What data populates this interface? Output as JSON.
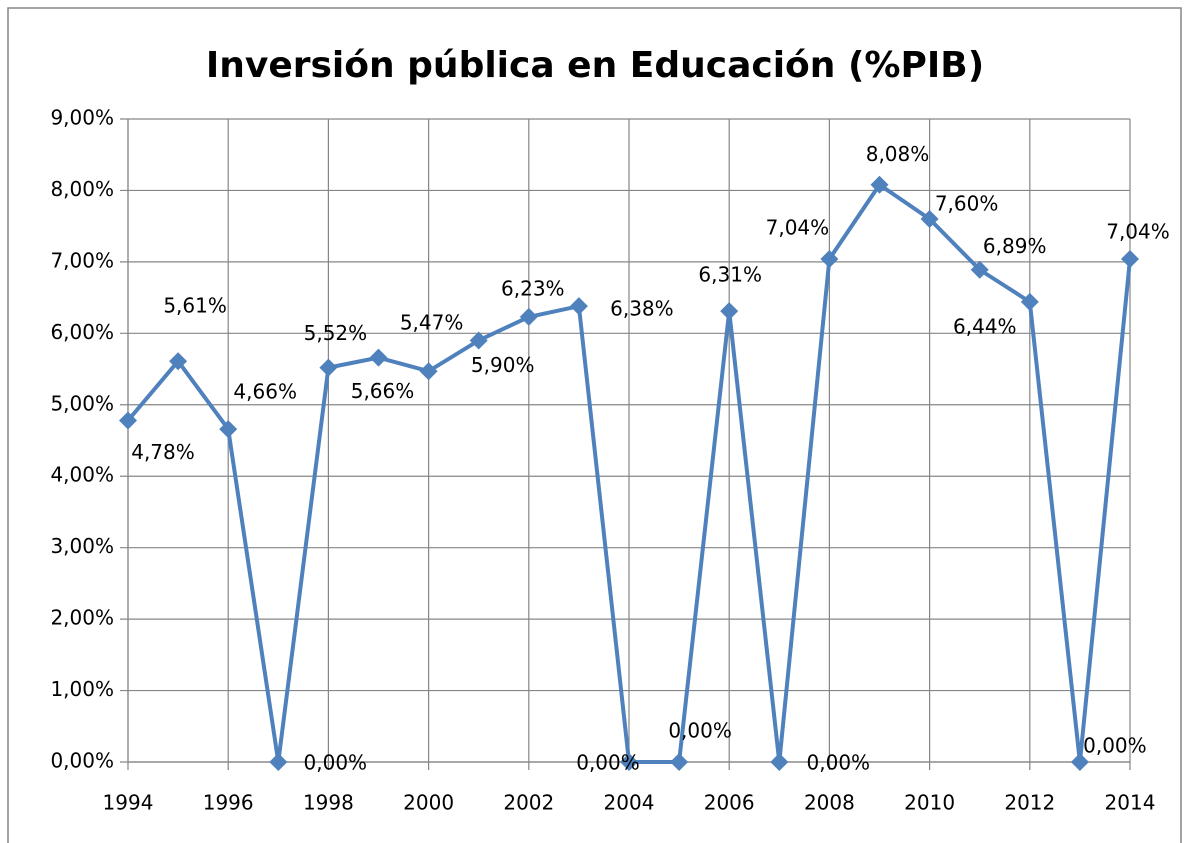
{
  "chart_data": {
    "type": "line",
    "title": "Inversión pública en Educación (%PIB)",
    "x": [
      1994,
      1995,
      1996,
      1997,
      1998,
      1999,
      2000,
      2001,
      2002,
      2003,
      2004,
      2005,
      2006,
      2007,
      2008,
      2009,
      2010,
      2011,
      2012,
      2013,
      2014
    ],
    "series": [
      {
        "name": "Inversión pública en Educación (%PIB)",
        "color": "#4f81bd",
        "values": [
          4.78,
          5.61,
          4.66,
          0,
          5.52,
          5.66,
          5.47,
          5.9,
          6.23,
          6.38,
          0,
          0,
          6.31,
          0,
          7.04,
          8.08,
          7.6,
          6.89,
          6.44,
          0,
          7.04
        ],
        "value_labels": [
          "4,78%",
          "5,61%",
          "4,66%",
          "0,00%",
          "5,52%",
          "5,66%",
          "5,47%",
          "5,90%",
          "6,23%",
          "6,38%",
          "0,00%",
          "0,00%",
          "6,31%",
          "0,00%",
          "7,04%",
          "8,08%",
          "7,60%",
          "6,89%",
          "6,44%",
          "0,00%",
          "7,04%"
        ]
      }
    ],
    "xlim": [
      1994,
      2014
    ],
    "xticks": [
      1994,
      1996,
      1998,
      2000,
      2002,
      2004,
      2006,
      2008,
      2010,
      2012,
      2014
    ],
    "ylim": [
      0,
      9
    ],
    "yticks": [
      {
        "value": 0,
        "label": "0,00%"
      },
      {
        "value": 1,
        "label": "1,00%"
      },
      {
        "value": 2,
        "label": "2,00%"
      },
      {
        "value": 3,
        "label": "3,00%"
      },
      {
        "value": 4,
        "label": "4,00%"
      },
      {
        "value": 5,
        "label": "5,00%"
      },
      {
        "value": 6,
        "label": "6,00%"
      },
      {
        "value": 7,
        "label": "7,00%"
      },
      {
        "value": 8,
        "label": "8,00%"
      },
      {
        "value": 9,
        "label": "9,00%"
      }
    ],
    "grid": true
  }
}
